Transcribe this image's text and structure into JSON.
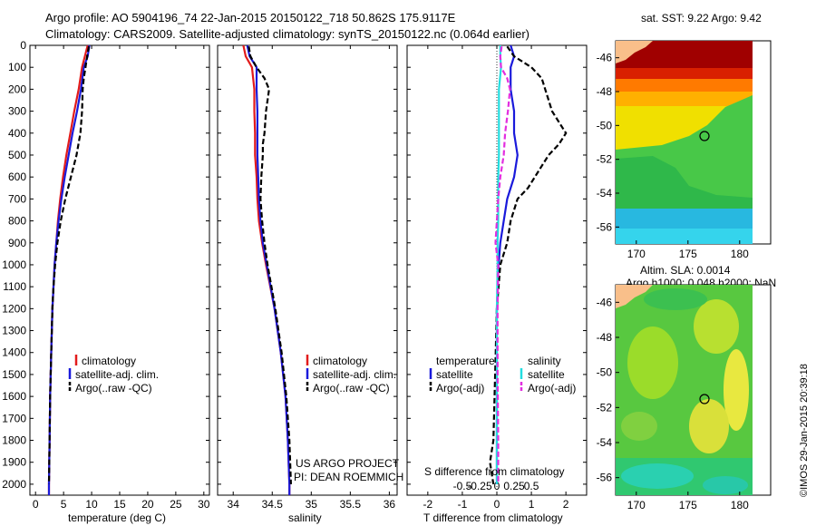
{
  "header": {
    "title_line1": "Argo profile: AO 5904196_74 22-Jan-2015 20150122_718 50.862S 175.9117E",
    "title_line2": "Climatology: CARS2009. Satellite-adjusted climatology: synTS_20150122.nc (0.064d earlier)"
  },
  "colors": {
    "climatology": "#e21b1b",
    "satellite": "#1a1adb",
    "argo": "#000000",
    "salinity_satellite": "#22dde0",
    "salinity_argo": "#e22ee0",
    "land": "#f9bf8a"
  },
  "chart_data": [
    {
      "type": "line",
      "name": "temperature",
      "xlabel": "temperature (deg C)",
      "xlim": [
        -1,
        31
      ],
      "xticks": [
        0,
        5,
        10,
        15,
        20,
        25,
        30
      ],
      "ylim": [
        0,
        2050
      ],
      "yticks": [
        0,
        100,
        200,
        300,
        400,
        500,
        600,
        700,
        800,
        900,
        1000,
        1100,
        1200,
        1300,
        1400,
        1500,
        1600,
        1700,
        1800,
        1900,
        2000
      ],
      "legend": {
        "items": [
          "climatology",
          "satellite-adj. clim.",
          "Argo(..raw -QC)"
        ],
        "position": "bottom-right"
      },
      "series": [
        {
          "name": "climatology",
          "color": "#e21b1b",
          "depth": [
            0,
            50,
            100,
            200,
            300,
            400,
            500,
            600,
            700,
            800,
            900,
            1000,
            1200,
            1400,
            1600,
            1800,
            2000,
            2050
          ],
          "values": [
            9.3,
            8.8,
            8.3,
            7.7,
            6.9,
            6.2,
            5.5,
            4.9,
            4.4,
            4.0,
            3.7,
            3.4,
            3.0,
            2.8,
            2.6,
            2.5,
            2.4,
            2.4
          ]
        },
        {
          "name": "satellite-adj. clim.",
          "color": "#1a1adb",
          "depth": [
            0,
            50,
            100,
            200,
            300,
            400,
            500,
            600,
            700,
            800,
            900,
            1000,
            1200,
            1400,
            1600,
            1800,
            2000,
            2050
          ],
          "values": [
            9.6,
            9.3,
            8.6,
            8.1,
            7.4,
            6.6,
            5.9,
            5.2,
            4.6,
            4.1,
            3.7,
            3.4,
            3.0,
            2.8,
            2.6,
            2.5,
            2.4,
            2.4
          ]
        },
        {
          "name": "Argo(..raw -QC)",
          "color": "#000000",
          "depth": [
            5,
            50,
            100,
            150,
            200,
            300,
            400,
            500,
            600,
            700,
            800,
            900,
            1000,
            1100,
            1200,
            1400,
            1600,
            1800,
            2000
          ],
          "values": [
            9.5,
            9.2,
            8.9,
            8.6,
            8.4,
            8.3,
            8.0,
            7.3,
            6.3,
            5.3,
            4.5,
            3.9,
            3.5,
            3.2,
            3.0,
            2.8,
            2.6,
            2.5,
            2.4
          ]
        }
      ]
    },
    {
      "type": "line",
      "name": "salinity",
      "xlabel": "salinity",
      "xlim": [
        33.8,
        36.1
      ],
      "xticks": [
        34,
        34.5,
        35,
        35.5,
        36
      ],
      "ylim": [
        0,
        2050
      ],
      "legend": {
        "items": [
          "climatology",
          "satellite-adj. clim.",
          "Argo(..raw -QC)"
        ],
        "position": "bottom-right"
      },
      "annotation": [
        "US ARGO PROJECT",
        "PI: DEAN ROEMMICH"
      ],
      "series": [
        {
          "name": "climatology",
          "color": "#e21b1b",
          "depth": [
            0,
            50,
            100,
            200,
            300,
            400,
            500,
            600,
            700,
            800,
            900,
            1000,
            1200,
            1400,
            1600,
            1800,
            2000,
            2050
          ],
          "values": [
            34.13,
            34.16,
            34.24,
            34.27,
            34.27,
            34.28,
            34.28,
            34.3,
            34.31,
            34.33,
            34.37,
            34.42,
            34.53,
            34.61,
            34.67,
            34.7,
            34.72,
            34.72
          ]
        },
        {
          "name": "satellite-adj. clim.",
          "color": "#1a1adb",
          "depth": [
            0,
            50,
            100,
            200,
            300,
            400,
            500,
            600,
            700,
            800,
            900,
            1000,
            1200,
            1400,
            1600,
            1800,
            2000,
            2050
          ],
          "values": [
            34.18,
            34.21,
            34.3,
            34.3,
            34.31,
            34.31,
            34.31,
            34.32,
            34.33,
            34.35,
            34.38,
            34.43,
            34.53,
            34.61,
            34.67,
            34.7,
            34.72,
            34.72
          ]
        },
        {
          "name": "Argo(..raw -QC)",
          "color": "#000000",
          "depth": [
            5,
            50,
            100,
            150,
            200,
            300,
            400,
            450,
            500,
            600,
            700,
            800,
            900,
            1000,
            1200,
            1400,
            1600,
            1800,
            2000
          ],
          "values": [
            34.2,
            34.22,
            34.3,
            34.4,
            34.46,
            34.42,
            34.4,
            34.38,
            34.38,
            34.36,
            34.35,
            34.37,
            34.4,
            34.44,
            34.54,
            34.62,
            34.68,
            34.72,
            34.74
          ]
        }
      ]
    },
    {
      "type": "line",
      "name": "difference",
      "xlabel": "T difference from climatology",
      "xlabel_top": "S difference from climatology",
      "xlim": [
        -2.6,
        2.6
      ],
      "xticks": [
        -2,
        -1,
        0,
        1,
        2
      ],
      "xticks_top": [
        "-0.5",
        "-0.25",
        "0",
        "0.25",
        "0.5"
      ],
      "ylim": [
        0,
        2050
      ],
      "legend": {
        "items": [
          "temperature",
          "satellite",
          "Argo(-adj)",
          "salinity",
          "satellite",
          "Argo(-adj)"
        ],
        "position": "bottom"
      },
      "series": [
        {
          "name": "temperature satellite",
          "color": "#1a1adb",
          "depth": [
            0,
            50,
            100,
            200,
            300,
            400,
            500,
            600,
            700,
            800,
            900,
            1000,
            1200,
            1400,
            1600,
            1800,
            2000
          ],
          "values": [
            0.4,
            0.5,
            0.4,
            0.4,
            0.5,
            0.5,
            0.6,
            0.5,
            0.3,
            0.2,
            0.1,
            0.05,
            0.0,
            0.0,
            0.0,
            0.0,
            0.0
          ]
        },
        {
          "name": "temperature Argo(-adj)",
          "color": "#000000",
          "depth": [
            5,
            50,
            100,
            150,
            200,
            300,
            350,
            400,
            450,
            500,
            550,
            600,
            650,
            700,
            800,
            900,
            1000,
            1200,
            1500,
            1800,
            1900,
            2000
          ],
          "values": [
            0.3,
            0.5,
            1.0,
            1.3,
            1.4,
            1.6,
            1.8,
            2.0,
            1.8,
            1.5,
            1.3,
            1.1,
            0.9,
            0.6,
            0.4,
            0.3,
            0.1,
            0.0,
            -0.05,
            -0.1,
            -0.2,
            -0.1
          ]
        },
        {
          "name": "salinity satellite",
          "color": "#22dde0",
          "depth": [
            0,
            50,
            100,
            200,
            300,
            400,
            500,
            600,
            700,
            800,
            900,
            1000,
            1200,
            1400,
            1600,
            1800,
            2000
          ],
          "values": [
            0.05,
            0.05,
            0.06,
            0.03,
            0.03,
            0.03,
            0.03,
            0.02,
            0.02,
            0.02,
            0.01,
            0.01,
            0.0,
            0.0,
            0.0,
            0.0,
            0.0
          ]
        },
        {
          "name": "salinity Argo(-adj)",
          "color": "#e22ee0",
          "depth": [
            5,
            50,
            100,
            150,
            200,
            300,
            400,
            500,
            600,
            700,
            800,
            900,
            1000,
            1200,
            1500,
            1800,
            2000
          ],
          "values": [
            0.07,
            0.05,
            0.06,
            0.15,
            0.19,
            0.16,
            0.12,
            0.1,
            0.05,
            0.02,
            0.0,
            -0.02,
            0.02,
            0.01,
            0.01,
            0.02,
            0.02
          ]
        }
      ]
    },
    {
      "type": "heatmap",
      "name": "sst-map",
      "title": "sat. SST: 9.22 Argo: 9.42",
      "xlim": [
        168,
        183
      ],
      "ylim": [
        -57,
        -45
      ],
      "xticks": [
        170,
        175,
        180
      ],
      "yticks": [
        -46,
        -48,
        -50,
        -52,
        -54,
        -56
      ],
      "marker": {
        "lon": 175.9,
        "lat": -50.86
      }
    },
    {
      "type": "heatmap",
      "name": "sla-map",
      "title_line1": "Altim. SLA: 0.0014",
      "title_line2": "Argo h1000: 0.048 h2000: NaN",
      "xlim": [
        168,
        183
      ],
      "ylim": [
        -57,
        -45
      ],
      "xticks": [
        170,
        175,
        180
      ],
      "yticks": [
        -46,
        -48,
        -50,
        -52,
        -54,
        -56
      ],
      "marker": {
        "lon": 175.9,
        "lat": -50.86
      }
    }
  ],
  "footer": {
    "credit": "©IMOS 29-Jan-2015 20:39:18"
  }
}
